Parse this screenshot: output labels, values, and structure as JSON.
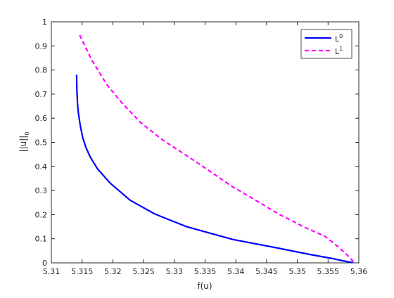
{
  "chart_data": {
    "type": "line",
    "title": "",
    "xlabel": "f(u)",
    "ylabel": "||u||",
    "ylabel_subscript": "0",
    "xlim": [
      5.31,
      5.36
    ],
    "ylim": [
      0,
      1
    ],
    "xticks": [
      "5.31",
      "5.315",
      "5.32",
      "5.325",
      "5.33",
      "5.335",
      "5.34",
      "5.345",
      "5.35",
      "5.355",
      "5.36"
    ],
    "yticks": [
      "0",
      "0.1",
      "0.2",
      "0.3",
      "0.4",
      "0.5",
      "0.6",
      "0.7",
      "0.8",
      "0.9",
      "1"
    ],
    "grid": false,
    "legend_position": "top-right",
    "series": [
      {
        "name": "L",
        "name_superscript": "0",
        "color": "#0000ff",
        "style": "solid",
        "points": [
          [
            5.3141,
            0.78
          ],
          [
            5.31415,
            0.72
          ],
          [
            5.31425,
            0.66
          ],
          [
            5.3144,
            0.62
          ],
          [
            5.3147,
            0.57
          ],
          [
            5.3151,
            0.52
          ],
          [
            5.3156,
            0.48
          ],
          [
            5.3163,
            0.44
          ],
          [
            5.3175,
            0.39
          ],
          [
            5.3196,
            0.33
          ],
          [
            5.3228,
            0.26
          ],
          [
            5.3268,
            0.203
          ],
          [
            5.332,
            0.15
          ],
          [
            5.3395,
            0.097
          ],
          [
            5.3465,
            0.063
          ],
          [
            5.352,
            0.035
          ],
          [
            5.3555,
            0.019
          ],
          [
            5.3575,
            0.008
          ],
          [
            5.359,
            0.001
          ]
        ]
      },
      {
        "name": "L",
        "name_superscript": "1",
        "color": "#ff00ff",
        "style": "dashed",
        "points": [
          [
            5.3146,
            0.945
          ],
          [
            5.3166,
            0.84
          ],
          [
            5.319,
            0.74
          ],
          [
            5.3216,
            0.66
          ],
          [
            5.3246,
            0.58
          ],
          [
            5.3281,
            0.51
          ],
          [
            5.332,
            0.445
          ],
          [
            5.3355,
            0.385
          ],
          [
            5.3392,
            0.32
          ],
          [
            5.3432,
            0.26
          ],
          [
            5.347,
            0.202
          ],
          [
            5.351,
            0.15
          ],
          [
            5.3545,
            0.11
          ],
          [
            5.3565,
            0.07
          ],
          [
            5.358,
            0.035
          ],
          [
            5.3592,
            0.003
          ]
        ]
      }
    ]
  }
}
